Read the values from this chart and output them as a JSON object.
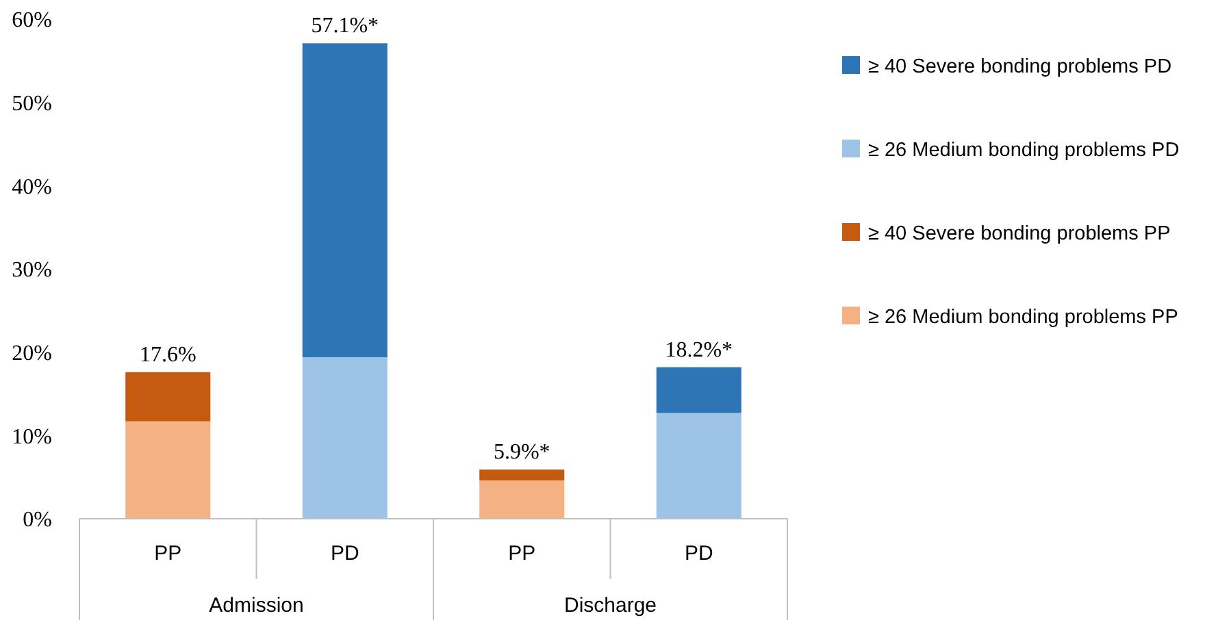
{
  "chart_data": {
    "type": "bar",
    "stacked": true,
    "categories": [
      "PP",
      "PD",
      "PP",
      "PD"
    ],
    "series": [
      {
        "name": "≥ 26 Medium bonding problems PP",
        "color": "#f4b183",
        "values": [
          11.7,
          null,
          4.6,
          null
        ]
      },
      {
        "name": "≥ 40 Severe bonding problems PP",
        "color": "#c55a11",
        "values": [
          5.9,
          null,
          1.3,
          null
        ]
      },
      {
        "name": "≥ 26 Medium bonding problems PD",
        "color": "#9dc3e6",
        "values": [
          null,
          19.4,
          null,
          12.7
        ]
      },
      {
        "name": "≥ 40 Severe bonding problems PD",
        "color": "#2e75b6",
        "values": [
          null,
          37.7,
          null,
          5.5
        ]
      }
    ],
    "totals": [
      "17.6%",
      "57.1%*",
      "5.9%*",
      "18.2%*"
    ],
    "annotations": [
      "Admission",
      "Discharge"
    ],
    "ylim": [
      0,
      60
    ],
    "yticks": [
      {
        "value": 0,
        "label": "0%"
      },
      {
        "value": 10,
        "label": "10%"
      },
      {
        "value": 20,
        "label": "20%"
      },
      {
        "value": 30,
        "label": "30%"
      },
      {
        "value": 40,
        "label": "40%"
      },
      {
        "value": 50,
        "label": "50%"
      },
      {
        "value": 60,
        "label": "60%"
      }
    ],
    "grid": false,
    "legend": "right"
  }
}
